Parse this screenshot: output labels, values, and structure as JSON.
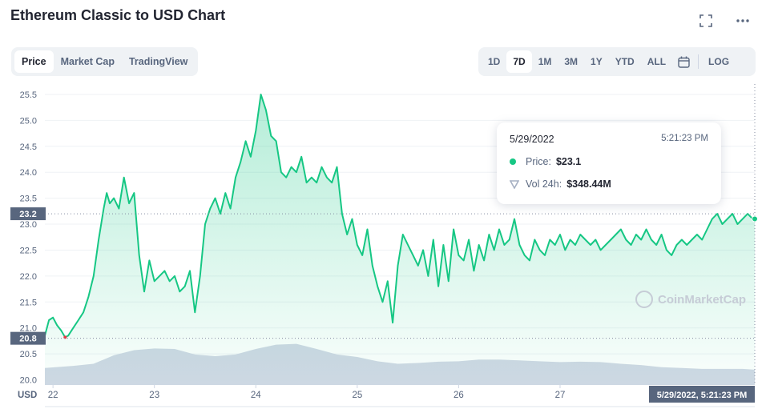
{
  "title": "Ethereum Classic to USD Chart",
  "top_icons": {
    "expand": "expand-icon",
    "more": "more-icon"
  },
  "tabs": [
    {
      "label": "Price",
      "active": true
    },
    {
      "label": "Market Cap",
      "active": false
    },
    {
      "label": "TradingView",
      "active": false
    }
  ],
  "ranges": [
    {
      "label": "1D",
      "active": false
    },
    {
      "label": "7D",
      "active": true
    },
    {
      "label": "1M",
      "active": false
    },
    {
      "label": "3M",
      "active": false
    },
    {
      "label": "1Y",
      "active": false
    },
    {
      "label": "YTD",
      "active": false
    },
    {
      "label": "ALL",
      "active": false
    }
  ],
  "calendar_icon": "calendar-icon",
  "log_label": "LOG",
  "tooltip": {
    "date": "5/29/2022",
    "time": "5:21:23 PM",
    "price_label": "Price:",
    "price_value": "$23.1",
    "vol_label": "Vol 24h:",
    "vol_value": "$348.44M"
  },
  "watermark": "CoinMarketCap",
  "colors": {
    "up": "#16c784",
    "down": "#ea3943",
    "volume": "#cfd6e4"
  },
  "chart_data": {
    "type": "line",
    "xlabel": "USD",
    "x_ticks": [
      "22",
      "23",
      "24",
      "25",
      "26",
      "27"
    ],
    "y_ticks": [
      20.0,
      20.5,
      21.0,
      21.5,
      22.0,
      22.5,
      23.0,
      23.5,
      24.0,
      24.5,
      25.0,
      25.5
    ],
    "ylim": [
      19.9,
      25.7
    ],
    "xlim": [
      21.92,
      28.92
    ],
    "current_price_label": "23.2",
    "low_price_label": "20.8",
    "crosshair_label": "5/29/2022, 5:21:23 PM",
    "grid": true,
    "series": [
      {
        "values_x": [
          21.92,
          21.96,
          22.0,
          22.04,
          22.08,
          22.12,
          22.15,
          22.2,
          22.25,
          22.3,
          22.35,
          22.4,
          22.45,
          22.5,
          22.53,
          22.56,
          22.6,
          22.65,
          22.7,
          22.75,
          22.8,
          22.85,
          22.9,
          22.95,
          23.0,
          23.05,
          23.1,
          23.15,
          23.2,
          23.25,
          23.3,
          23.35,
          23.4,
          23.45,
          23.5,
          23.55,
          23.6,
          23.65,
          23.7,
          23.75,
          23.8,
          23.85,
          23.9,
          23.95,
          24.0,
          24.05,
          24.1,
          24.15,
          24.2,
          24.25,
          24.3,
          24.35,
          24.4,
          24.45,
          24.5,
          24.55,
          24.6,
          24.65,
          24.7,
          24.75,
          24.8,
          24.85,
          24.9,
          24.95,
          25.0,
          25.05,
          25.1,
          25.15,
          25.2,
          25.25,
          25.3,
          25.35,
          25.4,
          25.45,
          25.5,
          25.55,
          25.6,
          25.65,
          25.7,
          25.75,
          25.8,
          25.85,
          25.9,
          25.95,
          26.0,
          26.05,
          26.1,
          26.15,
          26.2,
          26.25,
          26.3,
          26.35,
          26.4,
          26.45,
          26.5,
          26.55,
          26.6,
          26.65,
          26.7,
          26.75,
          26.8,
          26.85,
          26.9,
          26.95,
          27.0,
          27.05,
          27.1,
          27.15,
          27.2,
          27.25,
          27.3,
          27.35,
          27.4,
          27.45,
          27.5,
          27.55,
          27.6,
          27.65,
          27.7,
          27.75,
          27.8,
          27.85,
          27.9,
          27.95,
          28.0,
          28.05,
          28.1,
          28.15,
          28.2,
          28.25,
          28.3,
          28.35,
          28.4,
          28.45,
          28.5,
          28.55,
          28.6,
          28.65,
          28.7,
          28.75,
          28.8,
          28.85,
          28.9,
          28.92
        ],
        "values_y": [
          20.85,
          21.15,
          21.2,
          21.05,
          20.95,
          20.82,
          20.85,
          21.0,
          21.15,
          21.3,
          21.6,
          22.0,
          22.7,
          23.3,
          23.6,
          23.4,
          23.5,
          23.3,
          23.9,
          23.4,
          23.6,
          22.4,
          21.7,
          22.3,
          21.9,
          22.0,
          22.1,
          21.9,
          22.0,
          21.7,
          21.8,
          22.1,
          21.3,
          22.0,
          23.0,
          23.3,
          23.5,
          23.2,
          23.6,
          23.3,
          23.9,
          24.2,
          24.6,
          24.3,
          24.8,
          25.5,
          25.2,
          24.7,
          24.6,
          24.0,
          23.9,
          24.1,
          24.0,
          24.3,
          23.8,
          23.9,
          23.8,
          24.1,
          23.9,
          23.8,
          24.1,
          23.2,
          22.8,
          23.1,
          22.6,
          22.4,
          22.9,
          22.2,
          21.8,
          21.5,
          21.9,
          21.1,
          22.2,
          22.8,
          22.6,
          22.4,
          22.2,
          22.5,
          22.0,
          22.7,
          21.8,
          22.6,
          21.9,
          22.9,
          22.4,
          22.3,
          22.7,
          22.1,
          22.6,
          22.3,
          22.8,
          22.5,
          22.9,
          22.6,
          22.7,
          23.1,
          22.6,
          22.4,
          22.3,
          22.7,
          22.5,
          22.4,
          22.7,
          22.6,
          22.8,
          22.5,
          22.7,
          22.6,
          22.8,
          22.7,
          22.6,
          22.7,
          22.5,
          22.6,
          22.7,
          22.8,
          22.9,
          22.7,
          22.6,
          22.8,
          22.7,
          22.9,
          22.7,
          22.6,
          22.8,
          22.5,
          22.4,
          22.6,
          22.7,
          22.6,
          22.7,
          22.8,
          22.7,
          22.9,
          23.1,
          23.2,
          23.0,
          23.1,
          23.2,
          23.0,
          23.1,
          23.2,
          23.1,
          23.1
        ]
      }
    ],
    "volume": {
      "values_x": [
        21.92,
        22.2,
        22.4,
        22.6,
        22.8,
        23.0,
        23.2,
        23.4,
        23.6,
        23.8,
        24.0,
        24.2,
        24.4,
        24.6,
        24.8,
        25.0,
        25.2,
        25.4,
        25.6,
        25.8,
        26.0,
        26.2,
        26.4,
        26.6,
        26.8,
        27.0,
        27.2,
        27.4,
        27.6,
        27.8,
        28.0,
        28.2,
        28.4,
        28.6,
        28.8,
        28.92
      ],
      "relative_level": [
        0.4,
        0.45,
        0.5,
        0.7,
        0.82,
        0.86,
        0.85,
        0.72,
        0.68,
        0.72,
        0.85,
        0.95,
        0.97,
        0.85,
        0.72,
        0.66,
        0.56,
        0.5,
        0.52,
        0.55,
        0.56,
        0.6,
        0.6,
        0.58,
        0.56,
        0.54,
        0.55,
        0.54,
        0.5,
        0.47,
        0.42,
        0.4,
        0.38,
        0.38,
        0.38,
        0.36
      ]
    }
  }
}
